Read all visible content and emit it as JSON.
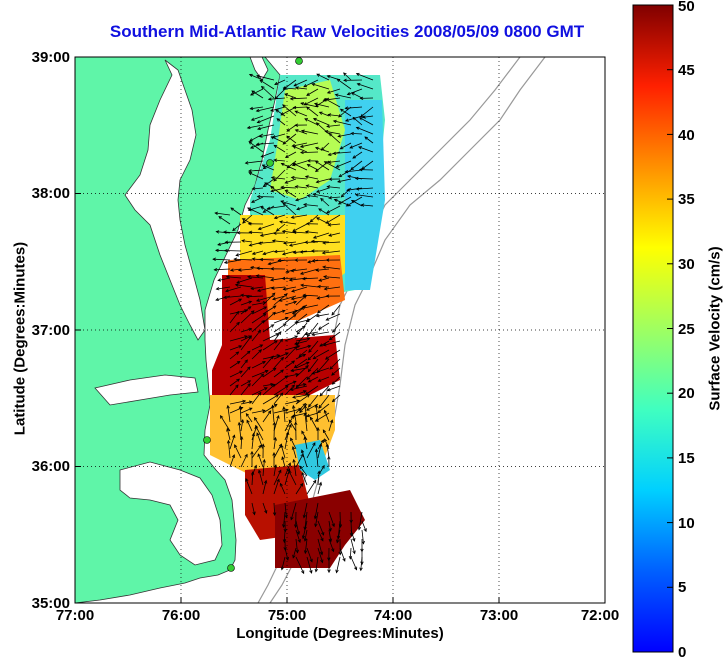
{
  "title": "Southern Mid-Atlantic Raw Velocities 2008/05/09 0800 GMT",
  "axes": {
    "xlabel": "Longitude (Degrees:Minutes)",
    "ylabel": "Latitude (Degrees:Minutes)",
    "x_ticks": [
      "77:00",
      "76:00",
      "75:00",
      "74:00",
      "73:00",
      "72:00"
    ],
    "y_ticks": [
      "39:00",
      "38:00",
      "37:00",
      "36:00",
      "35:00"
    ],
    "x_range": [
      -77,
      -72
    ],
    "y_range": [
      35,
      39
    ],
    "grid": "dotted"
  },
  "colorbar": {
    "label": "Surface Velocity (cm/s)",
    "ticks": [
      "0",
      "5",
      "10",
      "15",
      "20",
      "25",
      "30",
      "35",
      "40",
      "45",
      "50"
    ],
    "range": [
      0,
      50
    ],
    "colormap": "jet"
  },
  "colors": {
    "land": "#5ff5a8",
    "water": "#ffffff",
    "title": "#1010e0",
    "vectors": "#000000",
    "stations": "#33cc33",
    "bathymetry": "#999999"
  }
}
